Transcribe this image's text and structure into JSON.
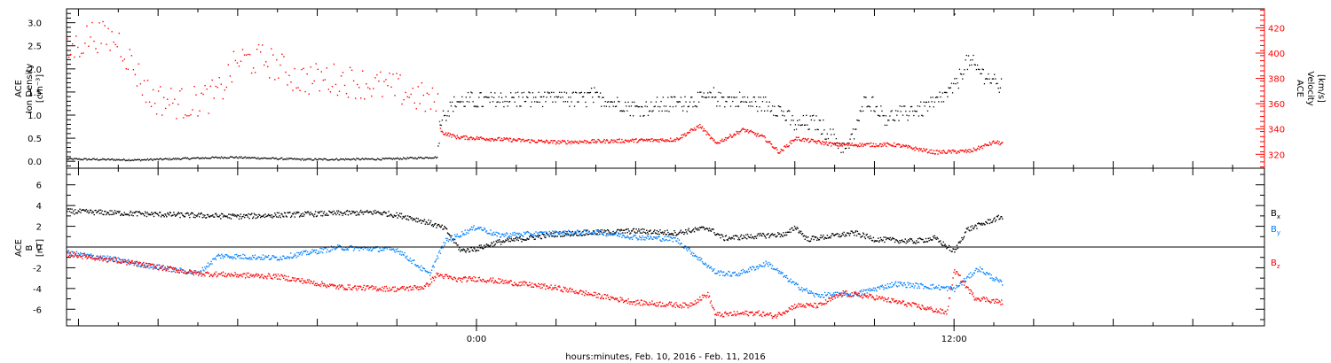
{
  "chart_data": [
    {
      "type": "scatter",
      "panel": "ion-density-velocity",
      "xlabel": "hours:minutes, Feb. 10, 2016 - Feb. 11, 2016",
      "x_ticks": [
        {
          "hour": 0,
          "label": "0:00"
        },
        {
          "hour": 12,
          "label": "12:00"
        }
      ],
      "xlim_hours": [
        -10.3,
        19.8
      ],
      "data_end_hour": 13.2,
      "left_axis": {
        "label_lines": [
          "ACE",
          "Ion Density",
          "[cm⁻³]"
        ],
        "ylim": [
          -0.15,
          3.3
        ],
        "tick_labels": [
          "0.0",
          "0.5",
          "1.0",
          "1.5",
          "2.0",
          "2.5",
          "3.0"
        ],
        "color": "#000000"
      },
      "right_axis": {
        "label_lines": [
          "ACE",
          "Velocity",
          "[km/s]"
        ],
        "ylim": [
          309,
          435
        ],
        "tick_labels": [
          "320",
          "340",
          "360",
          "380",
          "400",
          "420"
        ],
        "color": "#ff0000"
      },
      "series": [
        {
          "color": "#000000",
          "axis": "left",
          "knots": [
            [
              -10.3,
              0.06
            ],
            [
              -8.5,
              0.04
            ],
            [
              -6.2,
              0.1
            ],
            [
              -4.3,
              0.05
            ],
            [
              -2.3,
              0.06
            ],
            [
              -1.0,
              0.1
            ],
            [
              -0.9,
              1.0
            ],
            [
              -0.5,
              1.3
            ],
            [
              1.0,
              1.35
            ],
            [
              3.0,
              1.4
            ],
            [
              4.0,
              1.15
            ],
            [
              6.0,
              1.4
            ],
            [
              7.5,
              1.2
            ],
            [
              8.0,
              0.8
            ],
            [
              8.5,
              0.85
            ],
            [
              9.3,
              0.25
            ],
            [
              9.8,
              1.4
            ],
            [
              10.3,
              0.95
            ],
            [
              11.5,
              1.25
            ],
            [
              12.0,
              1.6
            ],
            [
              12.3,
              2.2
            ],
            [
              12.8,
              1.85
            ],
            [
              13.2,
              1.6
            ]
          ]
        },
        {
          "color": "#ff0000",
          "axis": "right",
          "knots": [
            [
              -10.3,
              400
            ],
            [
              -9.7,
              415
            ],
            [
              -9.0,
              410
            ],
            [
              -8.2,
              365
            ],
            [
              -7.3,
              360
            ],
            [
              -6.5,
              368
            ],
            [
              -6.0,
              395
            ],
            [
              -5.3,
              395
            ],
            [
              -4.5,
              380
            ],
            [
              -3.5,
              380
            ],
            [
              -2.0,
              372
            ],
            [
              -1.0,
              360
            ],
            [
              -0.9,
              338
            ],
            [
              -0.5,
              334
            ],
            [
              2.0,
              330
            ],
            [
              5.0,
              332
            ],
            [
              5.6,
              343
            ],
            [
              6.0,
              329
            ],
            [
              6.7,
              340
            ],
            [
              7.2,
              334
            ],
            [
              7.6,
              322
            ],
            [
              8.0,
              333
            ],
            [
              9.0,
              328
            ],
            [
              10.5,
              328
            ],
            [
              11.5,
              322
            ],
            [
              12.4,
              323
            ],
            [
              13.0,
              330
            ],
            [
              13.2,
              329
            ]
          ]
        }
      ]
    },
    {
      "type": "scatter",
      "panel": "magnetic-field",
      "ylabel_lines": [
        "ACE",
        "B",
        "[nT]"
      ],
      "ylim": [
        -7.6,
        7.6
      ],
      "y_tick_labels": [
        "-6",
        "-4",
        "-2",
        "0",
        "2",
        "4",
        "6"
      ],
      "zero_line": true,
      "series": [
        {
          "name": "Bx",
          "color": "#000000",
          "knots": [
            [
              -10.3,
              3.5
            ],
            [
              -8.0,
              3.2
            ],
            [
              -6.0,
              3.0
            ],
            [
              -4.5,
              3.2
            ],
            [
              -2.5,
              3.4
            ],
            [
              -1.8,
              3.0
            ],
            [
              -1.2,
              2.4
            ],
            [
              -0.8,
              1.8
            ],
            [
              -0.4,
              -0.3
            ],
            [
              0.0,
              -0.1
            ],
            [
              0.5,
              0.5
            ],
            [
              2.0,
              1.3
            ],
            [
              4.0,
              1.6
            ],
            [
              5.0,
              1.4
            ],
            [
              5.8,
              1.9
            ],
            [
              6.2,
              0.9
            ],
            [
              7.8,
              1.3
            ],
            [
              8.0,
              2.0
            ],
            [
              8.3,
              0.8
            ],
            [
              9.5,
              1.4
            ],
            [
              10.0,
              0.8
            ],
            [
              11.0,
              0.6
            ],
            [
              11.5,
              0.9
            ],
            [
              12.0,
              -0.4
            ],
            [
              12.3,
              1.7
            ],
            [
              13.2,
              3.0
            ]
          ]
        },
        {
          "name": "By",
          "color": "#0080ff",
          "knots": [
            [
              -10.3,
              -0.5
            ],
            [
              -9.0,
              -1.2
            ],
            [
              -8.5,
              -1.6
            ],
            [
              -7.0,
              -2.5
            ],
            [
              -6.5,
              -0.8
            ],
            [
              -5.0,
              -1.0
            ],
            [
              -3.5,
              0.0
            ],
            [
              -2.0,
              -0.2
            ],
            [
              -1.2,
              -2.6
            ],
            [
              -0.8,
              0.6
            ],
            [
              0.0,
              2.0
            ],
            [
              0.5,
              1.2
            ],
            [
              3.0,
              1.5
            ],
            [
              4.0,
              1.0
            ],
            [
              5.0,
              0.8
            ],
            [
              6.0,
              -2.4
            ],
            [
              6.5,
              -2.6
            ],
            [
              7.3,
              -1.5
            ],
            [
              8.0,
              -3.6
            ],
            [
              8.5,
              -4.6
            ],
            [
              9.5,
              -4.5
            ],
            [
              10.5,
              -3.5
            ],
            [
              11.5,
              -3.8
            ],
            [
              12.0,
              -4.0
            ],
            [
              12.6,
              -2.0
            ],
            [
              13.2,
              -3.5
            ]
          ]
        },
        {
          "name": "Bz",
          "color": "#ff0000",
          "knots": [
            [
              -10.3,
              -0.6
            ],
            [
              -9.0,
              -1.3
            ],
            [
              -7.0,
              -2.5
            ],
            [
              -5.0,
              -2.8
            ],
            [
              -3.5,
              -3.8
            ],
            [
              -2.0,
              -4.0
            ],
            [
              -1.3,
              -3.8
            ],
            [
              -1.0,
              -2.6
            ],
            [
              -0.5,
              -3.1
            ],
            [
              0.0,
              -3.0
            ],
            [
              2.0,
              -3.9
            ],
            [
              4.0,
              -5.3
            ],
            [
              5.3,
              -5.6
            ],
            [
              5.8,
              -4.5
            ],
            [
              6.0,
              -6.5
            ],
            [
              7.0,
              -6.3
            ],
            [
              7.5,
              -6.6
            ],
            [
              8.0,
              -5.6
            ],
            [
              8.6,
              -5.6
            ],
            [
              9.2,
              -4.4
            ],
            [
              10.0,
              -4.8
            ],
            [
              11.0,
              -5.6
            ],
            [
              11.8,
              -6.3
            ],
            [
              12.0,
              -2.2
            ],
            [
              12.5,
              -4.8
            ],
            [
              13.2,
              -5.3
            ]
          ]
        }
      ],
      "legend": [
        {
          "letter": "B",
          "sub": "x",
          "color": "#000000"
        },
        {
          "letter": "B",
          "sub": "y",
          "color": "#0080ff"
        },
        {
          "letter": "B",
          "sub": "z",
          "color": "#ff0000"
        }
      ]
    }
  ]
}
